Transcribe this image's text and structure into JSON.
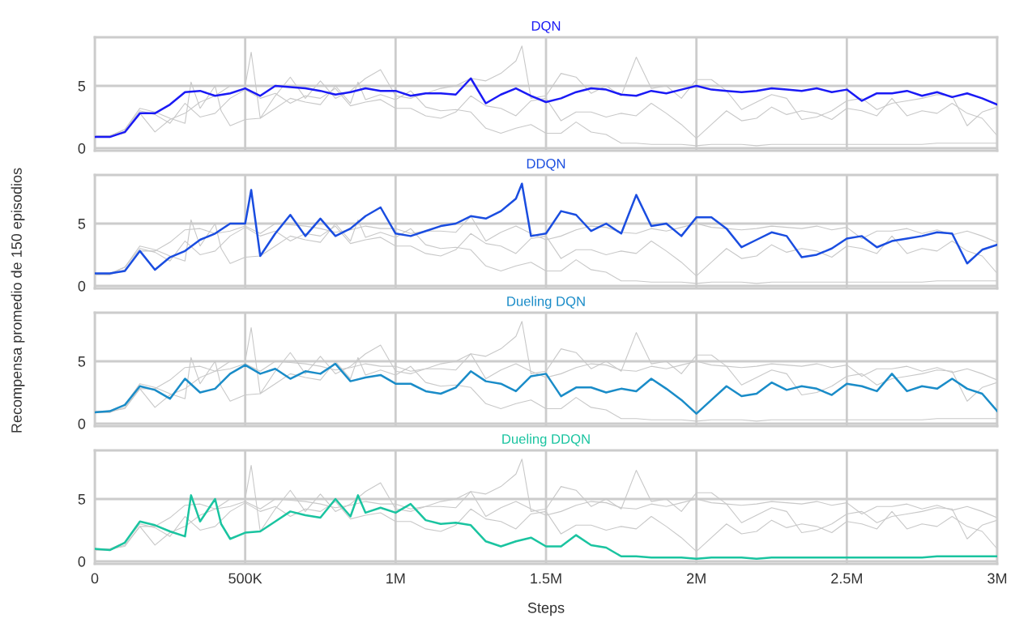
{
  "chart_data": [
    {
      "type": "line",
      "ylabel": "Recompensa promedio de 150 episodios",
      "tick_labels": "y",
      "grid": true,
      "xlim": [
        0,
        3000000
      ],
      "xticks": [
        {
          "value": 0,
          "label": null
        },
        {
          "value": 500000,
          "label": null
        },
        {
          "value": 1000000,
          "label": null
        },
        {
          "value": 1500000,
          "label": null
        },
        {
          "value": 2000000,
          "label": null
        },
        {
          "value": 2500000,
          "label": null
        },
        {
          "value": 3000000,
          "label": null
        }
      ],
      "ylim": [
        -0.2,
        8.9
      ],
      "yticks": [
        0,
        5
      ],
      "x": [
        0,
        50000,
        100000,
        150000,
        200000,
        250000,
        300000,
        350000,
        400000,
        450000,
        500000,
        550000,
        600000,
        650000,
        700000,
        750000,
        800000,
        850000,
        900000,
        950000,
        1000000,
        1050000,
        1100000,
        1150000,
        1200000,
        1250000,
        1300000,
        1350000,
        1400000,
        1450000,
        1500000,
        1550000,
        1600000,
        1650000,
        1700000,
        1750000,
        1800000,
        1850000,
        1900000,
        1950000,
        2000000,
        2050000,
        2100000,
        2150000,
        2200000,
        2250000,
        2300000,
        2350000,
        2400000,
        2450000,
        2500000,
        2550000,
        2600000,
        2650000,
        2700000,
        2750000,
        2800000,
        2850000,
        2900000,
        2950000,
        3000000
      ],
      "series": [
        {
          "color": "#c8c8c8",
          "x": [
            0,
            50000,
            100000,
            150000,
            200000,
            250000,
            300000,
            350000,
            400000,
            450000,
            500000,
            520000,
            550000,
            600000,
            650000,
            700000,
            750000,
            800000,
            850000,
            900000,
            950000,
            1000000,
            1050000,
            1100000,
            1150000,
            1200000,
            1250000,
            1300000,
            1350000,
            1400000,
            1420000,
            1450000,
            1500000,
            1550000,
            1600000,
            1650000,
            1700000,
            1750000,
            1800000,
            1850000,
            1900000,
            1950000,
            2000000,
            2050000,
            2100000,
            2150000,
            2200000,
            2250000,
            2300000,
            2350000,
            2400000,
            2450000,
            2500000,
            2550000,
            2600000,
            2650000,
            2700000,
            2750000,
            2800000,
            2850000,
            2900000,
            2950000,
            3000000
          ],
          "values": [
            1.0,
            1.0,
            1.2,
            2.8,
            1.3,
            2.3,
            2.8,
            3.7,
            4.2,
            5.0,
            5.0,
            7.7,
            2.4,
            4.2,
            5.7,
            4.0,
            5.4,
            4.0,
            4.6,
            5.6,
            6.3,
            4.2,
            4.0,
            4.4,
            4.8,
            5.0,
            5.6,
            5.4,
            6.0,
            7.0,
            8.2,
            4.0,
            4.2,
            6.0,
            5.7,
            4.4,
            5.0,
            4.2,
            7.3,
            4.8,
            5.0,
            4.0,
            5.5,
            5.5,
            4.6,
            3.1,
            3.7,
            4.3,
            4.0,
            2.3,
            2.5,
            3.0,
            3.8,
            4.0,
            3.1,
            3.6,
            3.8,
            4.0,
            4.3,
            4.2,
            1.8,
            2.9,
            3.3
          ]
        },
        {
          "color": "#c8c8c8",
          "values": [
            0.9,
            1.0,
            1.5,
            3.0,
            2.7,
            2.0,
            3.6,
            2.5,
            2.8,
            4.0,
            4.7,
            4.0,
            4.4,
            3.6,
            4.2,
            4.0,
            4.8,
            3.4,
            3.7,
            3.9,
            3.2,
            3.2,
            2.6,
            2.4,
            2.9,
            4.2,
            3.4,
            3.2,
            2.6,
            3.8,
            4.0,
            2.2,
            2.9,
            2.9,
            2.5,
            2.8,
            2.6,
            3.6,
            2.8,
            1.9,
            0.8,
            1.9,
            3.0,
            2.2,
            2.4,
            3.3,
            2.7,
            3.0,
            2.8,
            2.3,
            3.2,
            3.0,
            2.6,
            4.0,
            2.6,
            3.0,
            2.8,
            3.6,
            2.8,
            2.4,
            1.0
          ]
        },
        {
          "color": "#c8c8c8",
          "x": [
            0,
            50000,
            100000,
            150000,
            200000,
            250000,
            300000,
            320000,
            350000,
            400000,
            420000,
            450000,
            500000,
            550000,
            600000,
            650000,
            700000,
            750000,
            800000,
            850000,
            875000,
            900000,
            950000,
            1000000,
            1050000,
            1100000,
            1150000,
            1200000,
            1250000,
            1300000,
            1350000,
            1400000,
            1450000,
            1500000,
            1550000,
            1600000,
            1650000,
            1700000,
            1750000,
            1800000,
            1850000,
            1900000,
            1950000,
            2000000,
            2050000,
            2100000,
            2150000,
            2200000,
            2250000,
            2300000,
            2350000,
            2400000,
            2450000,
            2500000,
            2550000,
            2600000,
            2650000,
            2700000,
            2750000,
            2800000,
            2850000,
            2900000,
            2950000,
            3000000
          ],
          "values": [
            1.0,
            0.9,
            1.5,
            3.2,
            2.9,
            2.4,
            2.0,
            5.3,
            3.2,
            5.0,
            3.0,
            1.8,
            2.3,
            2.4,
            3.2,
            4.0,
            3.7,
            3.5,
            5.0,
            3.6,
            5.3,
            3.9,
            4.3,
            3.9,
            4.6,
            3.3,
            3.0,
            3.1,
            2.9,
            1.6,
            1.2,
            1.6,
            1.9,
            1.2,
            1.2,
            2.1,
            1.3,
            1.1,
            0.4,
            0.4,
            0.3,
            0.3,
            0.3,
            0.2,
            0.3,
            0.3,
            0.3,
            0.2,
            0.3,
            0.3,
            0.3,
            0.3,
            0.3,
            0.3,
            0.3,
            0.3,
            0.3,
            0.3,
            0.3,
            0.4,
            0.4,
            0.4,
            0.4,
            0.4
          ]
        },
        {
          "name": "DQN",
          "color": "#1a1af5",
          "values": [
            0.9,
            0.9,
            1.3,
            2.8,
            2.8,
            3.5,
            4.5,
            4.6,
            4.2,
            4.4,
            4.8,
            4.2,
            5.0,
            4.9,
            4.8,
            4.6,
            4.3,
            4.5,
            4.8,
            4.6,
            4.6,
            4.2,
            4.4,
            4.4,
            4.3,
            5.6,
            3.6,
            4.3,
            4.8,
            4.2,
            3.7,
            4.0,
            4.5,
            4.8,
            4.7,
            4.3,
            4.2,
            4.6,
            4.4,
            4.7,
            5.0,
            4.7,
            4.6,
            4.5,
            4.6,
            4.8,
            4.7,
            4.6,
            4.8,
            4.5,
            4.7,
            3.8,
            4.4,
            4.4,
            4.6,
            4.2,
            4.5,
            4.1,
            4.4,
            4.0,
            3.5
          ]
        }
      ]
    },
    {
      "type": "line",
      "tick_labels": "y",
      "grid": true,
      "xlim": [
        0,
        3000000
      ],
      "xticks": [
        {
          "value": 0,
          "label": null
        },
        {
          "value": 500000,
          "label": null
        },
        {
          "value": 1000000,
          "label": null
        },
        {
          "value": 1500000,
          "label": null
        },
        {
          "value": 2000000,
          "label": null
        },
        {
          "value": 2500000,
          "label": null
        },
        {
          "value": 3000000,
          "label": null
        }
      ],
      "ylim": [
        -0.2,
        8.9
      ],
      "yticks": [
        0,
        5
      ],
      "x": [
        0,
        50000,
        100000,
        150000,
        200000,
        250000,
        300000,
        350000,
        400000,
        450000,
        500000,
        550000,
        600000,
        650000,
        700000,
        750000,
        800000,
        850000,
        900000,
        950000,
        1000000,
        1050000,
        1100000,
        1150000,
        1200000,
        1250000,
        1300000,
        1350000,
        1400000,
        1450000,
        1500000,
        1550000,
        1600000,
        1650000,
        1700000,
        1750000,
        1800000,
        1850000,
        1900000,
        1950000,
        2000000,
        2050000,
        2100000,
        2150000,
        2200000,
        2250000,
        2300000,
        2350000,
        2400000,
        2450000,
        2500000,
        2550000,
        2600000,
        2650000,
        2700000,
        2750000,
        2800000,
        2850000,
        2900000,
        2950000,
        3000000
      ],
      "series": [
        {
          "color": "#c8c8c8",
          "values": [
            0.9,
            0.9,
            1.3,
            2.8,
            2.8,
            3.5,
            4.5,
            4.6,
            4.2,
            4.4,
            4.8,
            4.2,
            5.0,
            4.9,
            4.8,
            4.6,
            4.3,
            4.5,
            4.8,
            4.6,
            4.6,
            4.2,
            4.4,
            4.4,
            4.3,
            5.6,
            3.6,
            4.3,
            4.8,
            4.2,
            3.7,
            4.0,
            4.5,
            4.8,
            4.7,
            4.3,
            4.2,
            4.6,
            4.4,
            4.7,
            5.0,
            4.7,
            4.6,
            4.5,
            4.6,
            4.8,
            4.7,
            4.6,
            4.8,
            4.5,
            4.7,
            3.8,
            4.4,
            4.4,
            4.6,
            4.2,
            4.5,
            4.1,
            4.4,
            4.0,
            3.5
          ]
        },
        {
          "color": "#c8c8c8",
          "values": [
            0.9,
            1.0,
            1.5,
            3.0,
            2.7,
            2.0,
            3.6,
            2.5,
            2.8,
            4.0,
            4.7,
            4.0,
            4.4,
            3.6,
            4.2,
            4.0,
            4.8,
            3.4,
            3.7,
            3.9,
            3.2,
            3.2,
            2.6,
            2.4,
            2.9,
            4.2,
            3.4,
            3.2,
            2.6,
            3.8,
            4.0,
            2.2,
            2.9,
            2.9,
            2.5,
            2.8,
            2.6,
            3.6,
            2.8,
            1.9,
            0.8,
            1.9,
            3.0,
            2.2,
            2.4,
            3.3,
            2.7,
            3.0,
            2.8,
            2.3,
            3.2,
            3.0,
            2.6,
            4.0,
            2.6,
            3.0,
            2.8,
            3.6,
            2.8,
            2.4,
            1.0
          ]
        },
        {
          "color": "#c8c8c8",
          "x": [
            0,
            50000,
            100000,
            150000,
            200000,
            250000,
            300000,
            320000,
            350000,
            400000,
            420000,
            450000,
            500000,
            550000,
            600000,
            650000,
            700000,
            750000,
            800000,
            850000,
            875000,
            900000,
            950000,
            1000000,
            1050000,
            1100000,
            1150000,
            1200000,
            1250000,
            1300000,
            1350000,
            1400000,
            1450000,
            1500000,
            1550000,
            1600000,
            1650000,
            1700000,
            1750000,
            1800000,
            1850000,
            1900000,
            1950000,
            2000000,
            2050000,
            2100000,
            2150000,
            2200000,
            2250000,
            2300000,
            2350000,
            2400000,
            2450000,
            2500000,
            2550000,
            2600000,
            2650000,
            2700000,
            2750000,
            2800000,
            2850000,
            2900000,
            2950000,
            3000000
          ],
          "values": [
            1.0,
            0.9,
            1.5,
            3.2,
            2.9,
            2.4,
            2.0,
            5.3,
            3.2,
            5.0,
            3.0,
            1.8,
            2.3,
            2.4,
            3.2,
            4.0,
            3.7,
            3.5,
            5.0,
            3.6,
            5.3,
            3.9,
            4.3,
            3.9,
            4.6,
            3.3,
            3.0,
            3.1,
            2.9,
            1.6,
            1.2,
            1.6,
            1.9,
            1.2,
            1.2,
            2.1,
            1.3,
            1.1,
            0.4,
            0.4,
            0.3,
            0.3,
            0.3,
            0.2,
            0.3,
            0.3,
            0.3,
            0.2,
            0.3,
            0.3,
            0.3,
            0.3,
            0.3,
            0.3,
            0.3,
            0.3,
            0.3,
            0.3,
            0.3,
            0.4,
            0.4,
            0.4,
            0.4,
            0.4
          ]
        },
        {
          "name": "DDQN",
          "color": "#1a4de0",
          "x": [
            0,
            50000,
            100000,
            150000,
            200000,
            250000,
            300000,
            350000,
            400000,
            450000,
            500000,
            520000,
            550000,
            600000,
            650000,
            700000,
            750000,
            800000,
            850000,
            900000,
            950000,
            1000000,
            1050000,
            1100000,
            1150000,
            1200000,
            1250000,
            1300000,
            1350000,
            1400000,
            1420000,
            1450000,
            1500000,
            1550000,
            1600000,
            1650000,
            1700000,
            1750000,
            1800000,
            1850000,
            1900000,
            1950000,
            2000000,
            2050000,
            2100000,
            2150000,
            2200000,
            2250000,
            2300000,
            2350000,
            2400000,
            2450000,
            2500000,
            2550000,
            2600000,
            2650000,
            2700000,
            2750000,
            2800000,
            2850000,
            2900000,
            2950000,
            3000000
          ],
          "values": [
            1.0,
            1.0,
            1.2,
            2.8,
            1.3,
            2.3,
            2.8,
            3.7,
            4.2,
            5.0,
            5.0,
            7.7,
            2.4,
            4.2,
            5.7,
            4.0,
            5.4,
            4.0,
            4.6,
            5.6,
            6.3,
            4.2,
            4.0,
            4.4,
            4.8,
            5.0,
            5.6,
            5.4,
            6.0,
            7.0,
            8.2,
            4.0,
            4.2,
            6.0,
            5.7,
            4.4,
            5.0,
            4.2,
            7.3,
            4.8,
            5.0,
            4.0,
            5.5,
            5.5,
            4.6,
            3.1,
            3.7,
            4.3,
            4.0,
            2.3,
            2.5,
            3.0,
            3.8,
            4.0,
            3.1,
            3.6,
            3.8,
            4.0,
            4.3,
            4.2,
            1.8,
            2.9,
            3.3
          ]
        }
      ]
    },
    {
      "type": "line",
      "tick_labels": "y",
      "grid": true,
      "xlim": [
        0,
        3000000
      ],
      "xticks": [
        {
          "value": 0,
          "label": null
        },
        {
          "value": 500000,
          "label": null
        },
        {
          "value": 1000000,
          "label": null
        },
        {
          "value": 1500000,
          "label": null
        },
        {
          "value": 2000000,
          "label": null
        },
        {
          "value": 2500000,
          "label": null
        },
        {
          "value": 3000000,
          "label": null
        }
      ],
      "ylim": [
        -0.2,
        8.9
      ],
      "yticks": [
        0,
        5
      ],
      "x": [
        0,
        50000,
        100000,
        150000,
        200000,
        250000,
        300000,
        350000,
        400000,
        450000,
        500000,
        550000,
        600000,
        650000,
        700000,
        750000,
        800000,
        850000,
        900000,
        950000,
        1000000,
        1050000,
        1100000,
        1150000,
        1200000,
        1250000,
        1300000,
        1350000,
        1400000,
        1450000,
        1500000,
        1550000,
        1600000,
        1650000,
        1700000,
        1750000,
        1800000,
        1850000,
        1900000,
        1950000,
        2000000,
        2050000,
        2100000,
        2150000,
        2200000,
        2250000,
        2300000,
        2350000,
        2400000,
        2450000,
        2500000,
        2550000,
        2600000,
        2650000,
        2700000,
        2750000,
        2800000,
        2850000,
        2900000,
        2950000,
        3000000
      ],
      "series": [
        {
          "color": "#c8c8c8",
          "values": [
            0.9,
            0.9,
            1.3,
            2.8,
            2.8,
            3.5,
            4.5,
            4.6,
            4.2,
            4.4,
            4.8,
            4.2,
            5.0,
            4.9,
            4.8,
            4.6,
            4.3,
            4.5,
            4.8,
            4.6,
            4.6,
            4.2,
            4.4,
            4.4,
            4.3,
            5.6,
            3.6,
            4.3,
            4.8,
            4.2,
            3.7,
            4.0,
            4.5,
            4.8,
            4.7,
            4.3,
            4.2,
            4.6,
            4.4,
            4.7,
            5.0,
            4.7,
            4.6,
            4.5,
            4.6,
            4.8,
            4.7,
            4.6,
            4.8,
            4.5,
            4.7,
            3.8,
            4.4,
            4.4,
            4.6,
            4.2,
            4.5,
            4.1,
            4.4,
            4.0,
            3.5
          ]
        },
        {
          "color": "#c8c8c8",
          "x": [
            0,
            50000,
            100000,
            150000,
            200000,
            250000,
            300000,
            350000,
            400000,
            450000,
            500000,
            520000,
            550000,
            600000,
            650000,
            700000,
            750000,
            800000,
            850000,
            900000,
            950000,
            1000000,
            1050000,
            1100000,
            1150000,
            1200000,
            1250000,
            1300000,
            1350000,
            1400000,
            1420000,
            1450000,
            1500000,
            1550000,
            1600000,
            1650000,
            1700000,
            1750000,
            1800000,
            1850000,
            1900000,
            1950000,
            2000000,
            2050000,
            2100000,
            2150000,
            2200000,
            2250000,
            2300000,
            2350000,
            2400000,
            2450000,
            2500000,
            2550000,
            2600000,
            2650000,
            2700000,
            2750000,
            2800000,
            2850000,
            2900000,
            2950000,
            3000000
          ],
          "values": [
            1.0,
            1.0,
            1.2,
            2.8,
            1.3,
            2.3,
            2.8,
            3.7,
            4.2,
            5.0,
            5.0,
            7.7,
            2.4,
            4.2,
            5.7,
            4.0,
            5.4,
            4.0,
            4.6,
            5.6,
            6.3,
            4.2,
            4.0,
            4.4,
            4.8,
            5.0,
            5.6,
            5.4,
            6.0,
            7.0,
            8.2,
            4.0,
            4.2,
            6.0,
            5.7,
            4.4,
            5.0,
            4.2,
            7.3,
            4.8,
            5.0,
            4.0,
            5.5,
            5.5,
            4.6,
            3.1,
            3.7,
            4.3,
            4.0,
            2.3,
            2.5,
            3.0,
            3.8,
            4.0,
            3.1,
            3.6,
            3.8,
            4.0,
            4.3,
            4.2,
            1.8,
            2.9,
            3.3
          ]
        },
        {
          "color": "#c8c8c8",
          "x": [
            0,
            50000,
            100000,
            150000,
            200000,
            250000,
            300000,
            320000,
            350000,
            400000,
            420000,
            450000,
            500000,
            550000,
            600000,
            650000,
            700000,
            750000,
            800000,
            850000,
            875000,
            900000,
            950000,
            1000000,
            1050000,
            1100000,
            1150000,
            1200000,
            1250000,
            1300000,
            1350000,
            1400000,
            1450000,
            1500000,
            1550000,
            1600000,
            1650000,
            1700000,
            1750000,
            1800000,
            1850000,
            1900000,
            1950000,
            2000000,
            2050000,
            2100000,
            2150000,
            2200000,
            2250000,
            2300000,
            2350000,
            2400000,
            2450000,
            2500000,
            2550000,
            2600000,
            2650000,
            2700000,
            2750000,
            2800000,
            2850000,
            2900000,
            2950000,
            3000000
          ],
          "values": [
            1.0,
            0.9,
            1.5,
            3.2,
            2.9,
            2.4,
            2.0,
            5.3,
            3.2,
            5.0,
            3.0,
            1.8,
            2.3,
            2.4,
            3.2,
            4.0,
            3.7,
            3.5,
            5.0,
            3.6,
            5.3,
            3.9,
            4.3,
            3.9,
            4.6,
            3.3,
            3.0,
            3.1,
            2.9,
            1.6,
            1.2,
            1.6,
            1.9,
            1.2,
            1.2,
            2.1,
            1.3,
            1.1,
            0.4,
            0.4,
            0.3,
            0.3,
            0.3,
            0.2,
            0.3,
            0.3,
            0.3,
            0.2,
            0.3,
            0.3,
            0.3,
            0.3,
            0.3,
            0.3,
            0.3,
            0.3,
            0.3,
            0.3,
            0.3,
            0.4,
            0.4,
            0.4,
            0.4,
            0.4
          ]
        },
        {
          "name": "Dueling DQN",
          "color": "#1a8cc8",
          "values": [
            0.9,
            1.0,
            1.5,
            3.0,
            2.7,
            2.0,
            3.6,
            2.5,
            2.8,
            4.0,
            4.7,
            4.0,
            4.4,
            3.6,
            4.2,
            4.0,
            4.8,
            3.4,
            3.7,
            3.9,
            3.2,
            3.2,
            2.6,
            2.4,
            2.9,
            4.2,
            3.4,
            3.2,
            2.6,
            3.8,
            4.0,
            2.2,
            2.9,
            2.9,
            2.5,
            2.8,
            2.6,
            3.6,
            2.8,
            1.9,
            0.8,
            1.9,
            3.0,
            2.2,
            2.4,
            3.3,
            2.7,
            3.0,
            2.8,
            2.3,
            3.2,
            3.0,
            2.6,
            4.0,
            2.6,
            3.0,
            2.8,
            3.6,
            2.8,
            2.4,
            1.0
          ]
        }
      ]
    },
    {
      "type": "line",
      "xlabel": "Steps",
      "grid": true,
      "xlim": [
        0,
        3000000
      ],
      "xticks": [
        {
          "value": 0,
          "label": "0"
        },
        {
          "value": 500000,
          "label": "500K"
        },
        {
          "value": 1000000,
          "label": "1M"
        },
        {
          "value": 1500000,
          "label": "1.5M"
        },
        {
          "value": 2000000,
          "label": "2M"
        },
        {
          "value": 2500000,
          "label": "2.5M"
        },
        {
          "value": 3000000,
          "label": "3M"
        }
      ],
      "ylim": [
        -0.2,
        8.9
      ],
      "yticks": [
        0,
        5
      ],
      "x": [
        0,
        50000,
        100000,
        150000,
        200000,
        250000,
        300000,
        350000,
        400000,
        450000,
        500000,
        550000,
        600000,
        650000,
        700000,
        750000,
        800000,
        850000,
        900000,
        950000,
        1000000,
        1050000,
        1100000,
        1150000,
        1200000,
        1250000,
        1300000,
        1350000,
        1400000,
        1450000,
        1500000,
        1550000,
        1600000,
        1650000,
        1700000,
        1750000,
        1800000,
        1850000,
        1900000,
        1950000,
        2000000,
        2050000,
        2100000,
        2150000,
        2200000,
        2250000,
        2300000,
        2350000,
        2400000,
        2450000,
        2500000,
        2550000,
        2600000,
        2650000,
        2700000,
        2750000,
        2800000,
        2850000,
        2900000,
        2950000,
        3000000
      ],
      "series": [
        {
          "color": "#c8c8c8",
          "values": [
            0.9,
            0.9,
            1.3,
            2.8,
            2.8,
            3.5,
            4.5,
            4.6,
            4.2,
            4.4,
            4.8,
            4.2,
            5.0,
            4.9,
            4.8,
            4.6,
            4.3,
            4.5,
            4.8,
            4.6,
            4.6,
            4.2,
            4.4,
            4.4,
            4.3,
            5.6,
            3.6,
            4.3,
            4.8,
            4.2,
            3.7,
            4.0,
            4.5,
            4.8,
            4.7,
            4.3,
            4.2,
            4.6,
            4.4,
            4.7,
            5.0,
            4.7,
            4.6,
            4.5,
            4.6,
            4.8,
            4.7,
            4.6,
            4.8,
            4.5,
            4.7,
            3.8,
            4.4,
            4.4,
            4.6,
            4.2,
            4.5,
            4.1,
            4.4,
            4.0,
            3.5
          ]
        },
        {
          "color": "#c8c8c8",
          "x": [
            0,
            50000,
            100000,
            150000,
            200000,
            250000,
            300000,
            350000,
            400000,
            450000,
            500000,
            520000,
            550000,
            600000,
            650000,
            700000,
            750000,
            800000,
            850000,
            900000,
            950000,
            1000000,
            1050000,
            1100000,
            1150000,
            1200000,
            1250000,
            1300000,
            1350000,
            1400000,
            1420000,
            1450000,
            1500000,
            1550000,
            1600000,
            1650000,
            1700000,
            1750000,
            1800000,
            1850000,
            1900000,
            1950000,
            2000000,
            2050000,
            2100000,
            2150000,
            2200000,
            2250000,
            2300000,
            2350000,
            2400000,
            2450000,
            2500000,
            2550000,
            2600000,
            2650000,
            2700000,
            2750000,
            2800000,
            2850000,
            2900000,
            2950000,
            3000000
          ],
          "values": [
            1.0,
            1.0,
            1.2,
            2.8,
            1.3,
            2.3,
            2.8,
            3.7,
            4.2,
            5.0,
            5.0,
            7.7,
            2.4,
            4.2,
            5.7,
            4.0,
            5.4,
            4.0,
            4.6,
            5.6,
            6.3,
            4.2,
            4.0,
            4.4,
            4.8,
            5.0,
            5.6,
            5.4,
            6.0,
            7.0,
            8.2,
            4.0,
            4.2,
            6.0,
            5.7,
            4.4,
            5.0,
            4.2,
            7.3,
            4.8,
            5.0,
            4.0,
            5.5,
            5.5,
            4.6,
            3.1,
            3.7,
            4.3,
            4.0,
            2.3,
            2.5,
            3.0,
            3.8,
            4.0,
            3.1,
            3.6,
            3.8,
            4.0,
            4.3,
            4.2,
            1.8,
            2.9,
            3.3
          ]
        },
        {
          "color": "#c8c8c8",
          "values": [
            0.9,
            1.0,
            1.5,
            3.0,
            2.7,
            2.0,
            3.6,
            2.5,
            2.8,
            4.0,
            4.7,
            4.0,
            4.4,
            3.6,
            4.2,
            4.0,
            4.8,
            3.4,
            3.7,
            3.9,
            3.2,
            3.2,
            2.6,
            2.4,
            2.9,
            4.2,
            3.4,
            3.2,
            2.6,
            3.8,
            4.0,
            2.2,
            2.9,
            2.9,
            2.5,
            2.8,
            2.6,
            3.6,
            2.8,
            1.9,
            0.8,
            1.9,
            3.0,
            2.2,
            2.4,
            3.3,
            2.7,
            3.0,
            2.8,
            2.3,
            3.2,
            3.0,
            2.6,
            4.0,
            2.6,
            3.0,
            2.8,
            3.6,
            2.8,
            2.4,
            1.0
          ]
        },
        {
          "name": "Dueling DDQN",
          "color": "#1ac4a0",
          "x": [
            0,
            50000,
            100000,
            150000,
            200000,
            250000,
            300000,
            320000,
            350000,
            400000,
            420000,
            450000,
            500000,
            550000,
            600000,
            650000,
            700000,
            750000,
            800000,
            850000,
            875000,
            900000,
            950000,
            1000000,
            1050000,
            1100000,
            1150000,
            1200000,
            1250000,
            1300000,
            1350000,
            1400000,
            1450000,
            1500000,
            1550000,
            1600000,
            1650000,
            1700000,
            1750000,
            1800000,
            1850000,
            1900000,
            1950000,
            2000000,
            2050000,
            2100000,
            2150000,
            2200000,
            2250000,
            2300000,
            2350000,
            2400000,
            2450000,
            2500000,
            2550000,
            2600000,
            2650000,
            2700000,
            2750000,
            2800000,
            2850000,
            2900000,
            2950000,
            3000000
          ],
          "values": [
            1.0,
            0.9,
            1.5,
            3.2,
            2.9,
            2.4,
            2.0,
            5.3,
            3.2,
            5.0,
            3.0,
            1.8,
            2.3,
            2.4,
            3.2,
            4.0,
            3.7,
            3.5,
            5.0,
            3.6,
            5.3,
            3.9,
            4.3,
            3.9,
            4.6,
            3.3,
            3.0,
            3.1,
            2.9,
            1.6,
            1.2,
            1.6,
            1.9,
            1.2,
            1.2,
            2.1,
            1.3,
            1.1,
            0.4,
            0.4,
            0.3,
            0.3,
            0.3,
            0.2,
            0.3,
            0.3,
            0.3,
            0.2,
            0.3,
            0.3,
            0.3,
            0.3,
            0.3,
            0.3,
            0.3,
            0.3,
            0.3,
            0.3,
            0.3,
            0.4,
            0.4,
            0.4,
            0.4,
            0.4
          ]
        }
      ]
    }
  ]
}
